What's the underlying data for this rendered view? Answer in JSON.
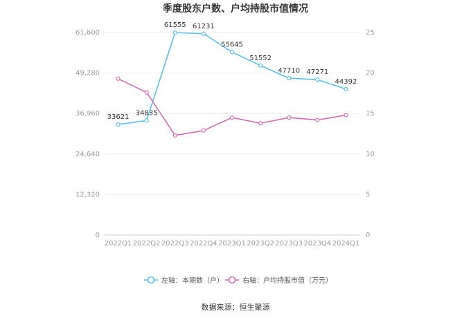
{
  "chart_data": {
    "type": "line",
    "title": "季度股东户数、户均持股市值情况",
    "categories": [
      "2022Q1",
      "2022Q2",
      "2022Q3",
      "2022Q4",
      "2023Q1",
      "2023Q2",
      "2023Q3",
      "2023Q4",
      "2024Q1"
    ],
    "y_left": {
      "ticks": [
        "0",
        "12,320",
        "24,640",
        "36,960",
        "49,280",
        "61,600"
      ],
      "range": [
        0,
        61600
      ]
    },
    "y_right": {
      "ticks": [
        "0",
        "5",
        "10",
        "15",
        "20",
        "25"
      ],
      "range": [
        0,
        25
      ]
    },
    "series": [
      {
        "name": "左轴：本期数（户）",
        "axis": "left",
        "color": "#5bc0eb",
        "values": [
          33621,
          34835,
          61555,
          61231,
          55645,
          51552,
          47710,
          47271,
          44392
        ],
        "labels": [
          "33621",
          "34835",
          "61555",
          "61231",
          "55645",
          "51552",
          "47710",
          "47271",
          "44392"
        ]
      },
      {
        "name": "右轴：户均持股市值（万元）",
        "axis": "right",
        "color": "#d66bb2",
        "values": [
          19.3,
          17.6,
          12.3,
          12.9,
          14.5,
          13.8,
          14.5,
          14.2,
          14.8
        ]
      }
    ],
    "grid": true,
    "legend_position": "bottom"
  },
  "source_text": "数据来源：恒生聚源"
}
